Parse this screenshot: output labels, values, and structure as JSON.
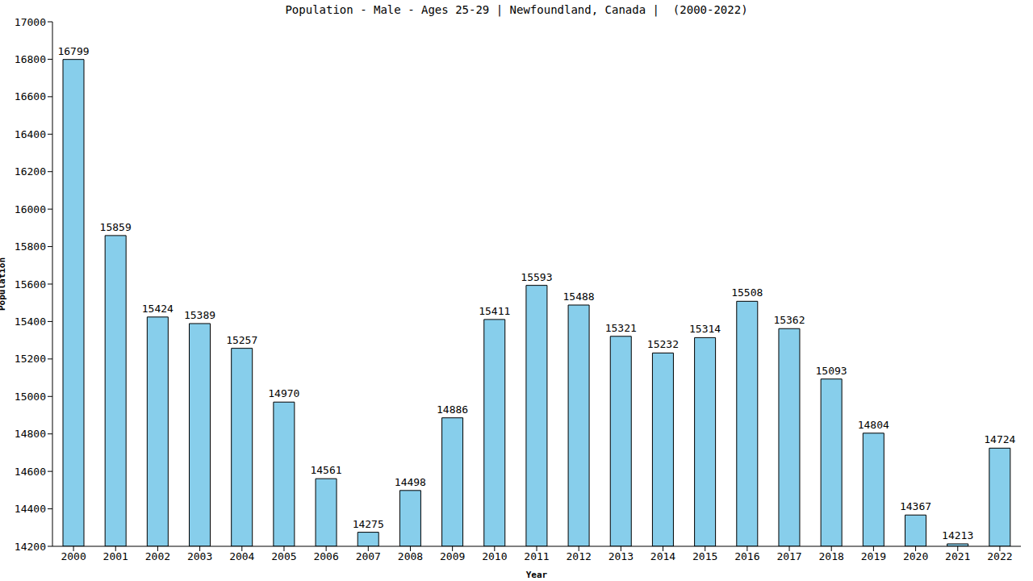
{
  "chart_data": {
    "type": "bar",
    "title": "Population - Male - Ages 25-29 | Newfoundland, Canada |  (2000-2022)",
    "x_label": "Year",
    "y_label": "Population",
    "categories": [
      "2000",
      "2001",
      "2002",
      "2003",
      "2004",
      "2005",
      "2006",
      "2007",
      "2008",
      "2009",
      "2010",
      "2011",
      "2012",
      "2013",
      "2014",
      "2015",
      "2016",
      "2017",
      "2018",
      "2019",
      "2020",
      "2021",
      "2022"
    ],
    "values": [
      16799,
      15859,
      15424,
      15389,
      15257,
      14970,
      14561,
      14275,
      14498,
      14886,
      15411,
      15593,
      15488,
      15321,
      15232,
      15314,
      15508,
      15362,
      15093,
      14804,
      14367,
      14213,
      14724
    ],
    "color": "#87ceeb",
    "ylim": [
      14200,
      17000
    ],
    "yticks": [
      14200,
      14400,
      14600,
      14800,
      15000,
      15200,
      15400,
      15600,
      15800,
      16000,
      16200,
      16400,
      16600,
      16800,
      17000
    ],
    "grid": false,
    "data_labels": true
  }
}
